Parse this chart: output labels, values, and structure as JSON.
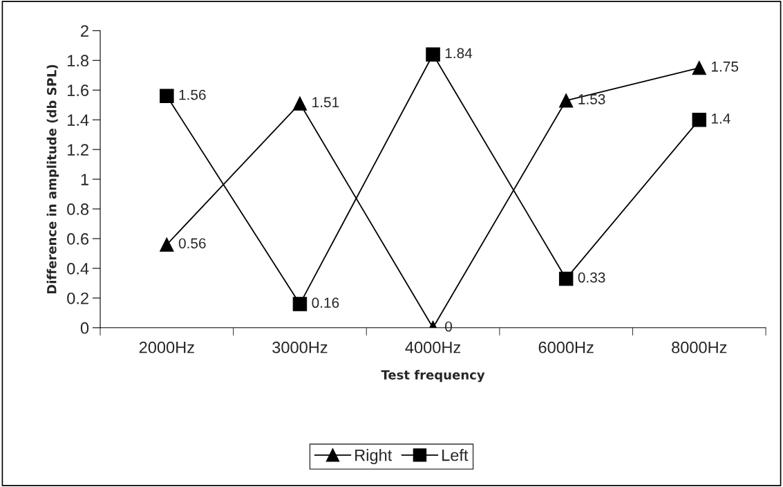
{
  "chart_data": {
    "type": "line",
    "xlabel": "Test frequency",
    "ylabel": "Difference in amplitude (db SPL)",
    "categories": [
      "2000Hz",
      "3000Hz",
      "4000Hz",
      "6000Hz",
      "8000Hz"
    ],
    "series": [
      {
        "name": "Right",
        "color": "#000000",
        "marker": "triangle",
        "values": [
          0.56,
          1.51,
          0,
          1.53,
          1.75
        ]
      },
      {
        "name": "Left",
        "color": "#000000",
        "marker": "square",
        "values": [
          1.56,
          0.16,
          1.84,
          0.33,
          1.4
        ]
      }
    ],
    "ylim": [
      0,
      2
    ],
    "yticks": [
      0,
      0.2,
      0.4,
      0.6,
      0.8,
      1,
      1.2,
      1.4,
      1.6,
      1.8,
      2
    ],
    "data_labels": true,
    "grid": false,
    "legend": "bottom",
    "line_style": "solid"
  }
}
